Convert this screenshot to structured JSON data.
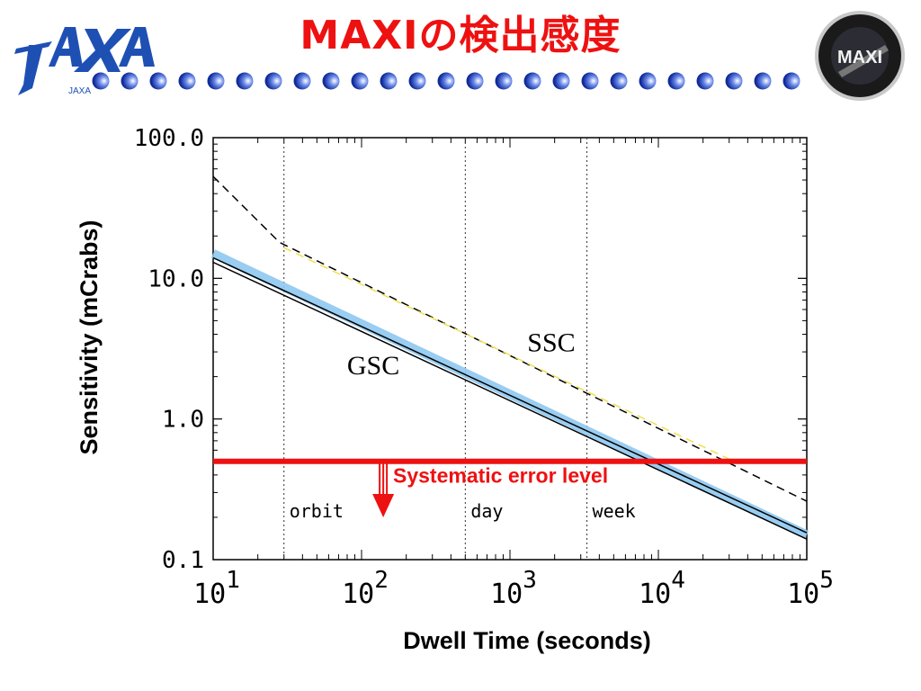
{
  "slide": {
    "title": "MAXIの検出感度",
    "logo_text": "JAXA",
    "emblem_text": "MAXI",
    "accent_color": "#ee1111",
    "logo_color": "#1e50b4"
  },
  "chart_data": {
    "type": "line",
    "title": "",
    "xlabel": "Dwell Time (seconds)",
    "ylabel": "Sensitivity (mCrabs)",
    "xscale": "log",
    "yscale": "log",
    "xlim": [
      10,
      100000
    ],
    "ylim": [
      0.1,
      100
    ],
    "x_tick_labels": [
      {
        "base": "10",
        "exp": "1"
      },
      {
        "base": "10",
        "exp": "2"
      },
      {
        "base": "10",
        "exp": "3"
      },
      {
        "base": "10",
        "exp": "4"
      },
      {
        "base": "10",
        "exp": "5"
      }
    ],
    "y_tick_labels": [
      "0.1",
      "1.0",
      "10.0",
      "100.0"
    ],
    "grid": false,
    "legend": "none",
    "series": [
      {
        "name": "GSC",
        "style": "blue-band",
        "x": [
          10,
          100000
        ],
        "y": [
          15,
          0.15
        ],
        "color": "#8ec8f0"
      },
      {
        "name": "GSC",
        "style": "solid",
        "x": [
          10,
          100000
        ],
        "y": [
          14,
          0.155
        ],
        "color": "#000000"
      },
      {
        "name": "GSC",
        "style": "solid",
        "x": [
          10,
          100000
        ],
        "y": [
          13,
          0.14
        ],
        "color": "#000000"
      },
      {
        "name": "SSC",
        "style": "dashed",
        "x": [
          10,
          28,
          100000
        ],
        "y": [
          53,
          18,
          0.26
        ],
        "color": "#000000"
      },
      {
        "name": "SSC",
        "style": "dashed",
        "x": [
          30,
          35000
        ],
        "y": [
          16.5,
          0.48
        ],
        "color": "#f0e050"
      }
    ],
    "reference_lines": [
      {
        "label": "Systematic error level",
        "y": 0.5,
        "color": "#ee1111"
      }
    ],
    "time_markers": [
      {
        "label": "orbit",
        "x": 30
      },
      {
        "label": "day",
        "x": 500
      },
      {
        "label": "week",
        "x": 3300
      }
    ],
    "annotations": [
      {
        "text": "GSC",
        "x": 120,
        "y": 2.4
      },
      {
        "text": "SSC",
        "x": 1900,
        "y": 3.5
      }
    ],
    "limit_arrow": {
      "x": 140,
      "y_from": 0.5,
      "y_to": 0.2,
      "color": "#ee1111"
    }
  }
}
